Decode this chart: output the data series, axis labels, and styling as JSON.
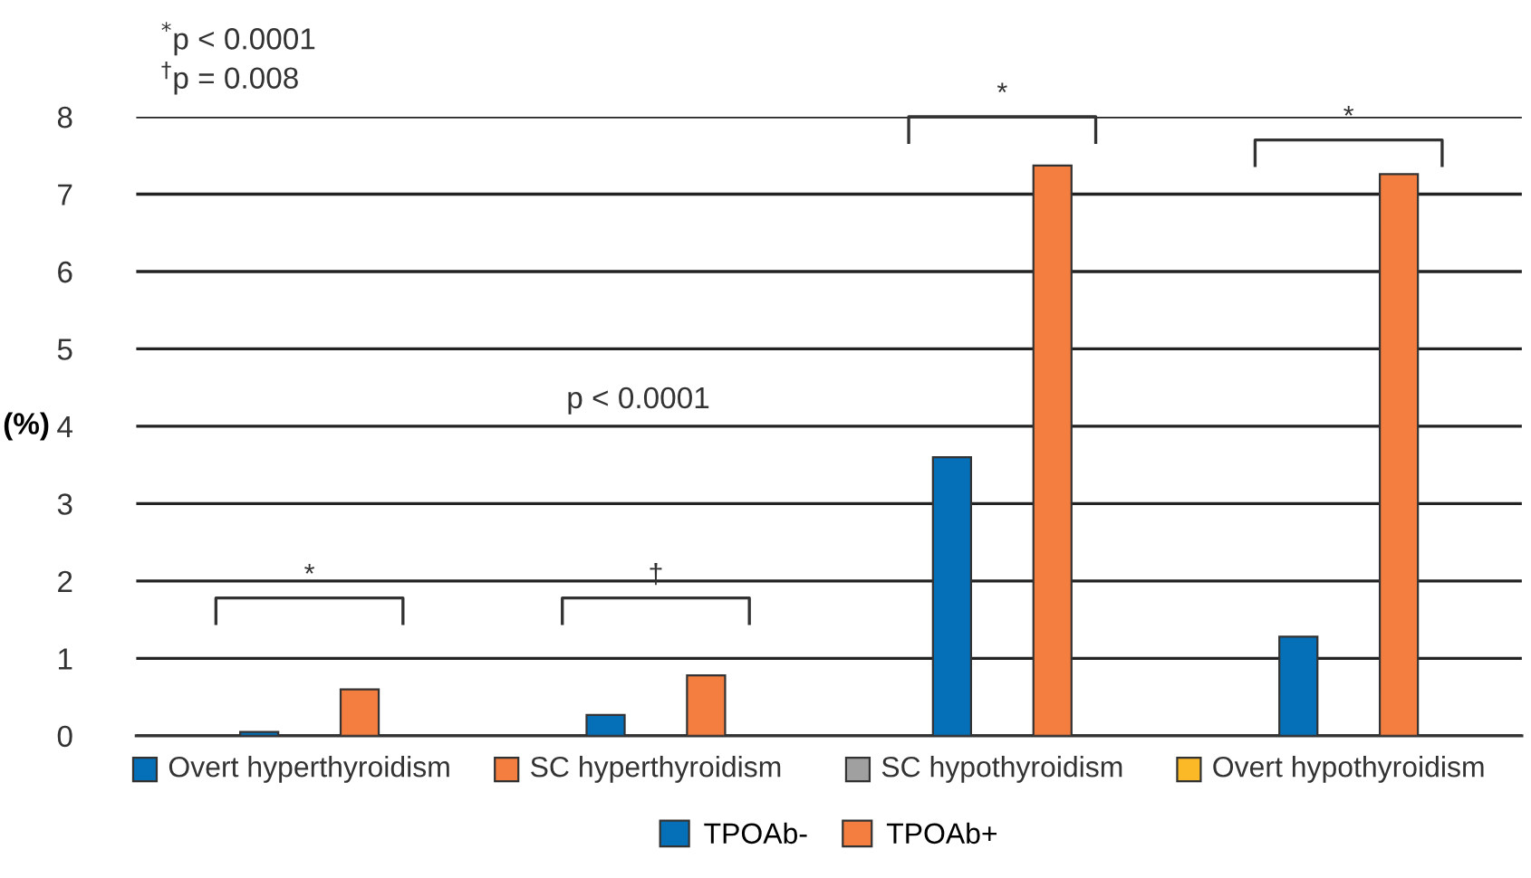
{
  "chart_data": {
    "type": "bar",
    "ylabel": "(%)",
    "categories": [
      "Overt hyperthyroidism",
      "SC hyperthyroidism",
      "SC hypothyroidism",
      "Overt hypothyroidism"
    ],
    "series": [
      {
        "name": "TPOAb-",
        "color": "#0570b8",
        "values": [
          0.05,
          0.27,
          3.6,
          1.28
        ]
      },
      {
        "name": "TPOAb+",
        "color": "#f37e3f",
        "values": [
          0.6,
          0.78,
          7.37,
          7.26
        ]
      }
    ],
    "ylim": [
      0,
      8
    ],
    "yticks": [
      0,
      1,
      2,
      3,
      4,
      5,
      6,
      7,
      8
    ],
    "grid": "y",
    "legend": "bottom",
    "annotations": [
      "$^{*}$p < 0.0001",
      "$^{†}$p = 0.008",
      "p < 0.0001",
      "*",
      "†",
      "*",
      "*"
    ]
  }
}
